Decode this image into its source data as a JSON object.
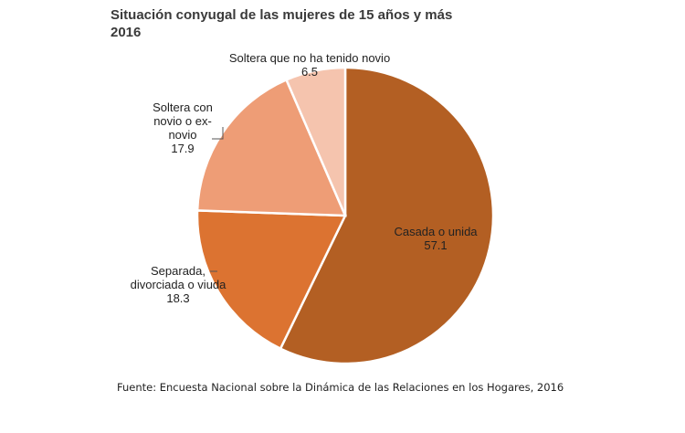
{
  "chart_data": {
    "type": "pie",
    "title_lines": [
      "Situación conyugal de las mujeres de 15 años y más",
      "2016"
    ],
    "slices": [
      {
        "label_lines": [
          "Casada o unida"
        ],
        "value": 57.1,
        "value_text": "57.1",
        "color": "#b35f23"
      },
      {
        "label_lines": [
          "Separada,",
          "divorciada o viuda"
        ],
        "value": 18.3,
        "value_text": "18.3",
        "color": "#dc7331"
      },
      {
        "label_lines": [
          "Soltera con",
          "novio o ex-",
          "novio"
        ],
        "value": 17.9,
        "value_text": "17.9",
        "color": "#ee9d76"
      },
      {
        "label_lines": [
          "Soltera que no ha tenido novio"
        ],
        "value": 6.5,
        "value_text": "6.5",
        "color": "#f5c4ae"
      }
    ],
    "source": "Fuente: Encuesta Nacional sobre la Dinámica de las Relaciones en los Hogares, 2016"
  }
}
